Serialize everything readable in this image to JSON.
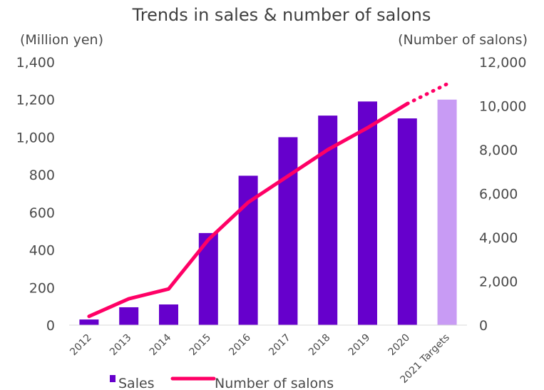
{
  "chart_data": {
    "type": "bar",
    "title": "Trends in sales & number of salons",
    "left_axis": {
      "label": "(Million yen)",
      "ylim": [
        0,
        1400
      ],
      "ticks": [
        "0",
        "200",
        "400",
        "600",
        "800",
        "1,000",
        "1,200",
        "1,400"
      ]
    },
    "right_axis": {
      "label": "(Number of salons)",
      "ylim": [
        0,
        12000
      ],
      "ticks": [
        "0",
        "2,000",
        "4,000",
        "6,000",
        "8,000",
        "10,000",
        "12,000"
      ]
    },
    "categories": [
      "2012",
      "2013",
      "2014",
      "2015",
      "2016",
      "2017",
      "2018",
      "2019",
      "2020",
      "2021 Targets"
    ],
    "series": [
      {
        "name": "Sales",
        "type": "bar",
        "axis": "left",
        "color": "#6600cc",
        "target_color": "#c89bf4",
        "values": [
          30,
          95,
          110,
          490,
          795,
          1000,
          1115,
          1190,
          1100,
          1200
        ]
      },
      {
        "name": "Number of salons",
        "type": "line",
        "axis": "right",
        "color": "#ff0066",
        "values": [
          400,
          1200,
          1650,
          3900,
          5600,
          6800,
          8000,
          9000,
          10100,
          11000
        ],
        "projected_from_index": 8
      }
    ],
    "legend_position": "bottom",
    "grid": false
  }
}
